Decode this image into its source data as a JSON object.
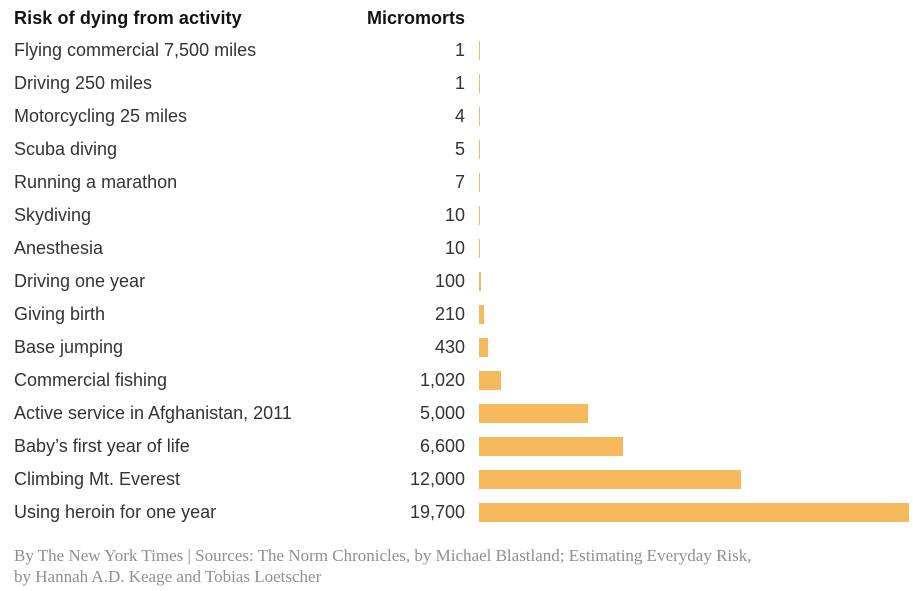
{
  "header": {
    "title": "Risk of dying from activity",
    "value_column": "Micromorts"
  },
  "rows": [
    {
      "label": "Flying commercial 7,500 miles",
      "value_label": "1",
      "value": 1
    },
    {
      "label": "Driving 250 miles",
      "value_label": "1",
      "value": 1
    },
    {
      "label": "Motorcycling 25 miles",
      "value_label": "4",
      "value": 4
    },
    {
      "label": "Scuba diving",
      "value_label": "5",
      "value": 5
    },
    {
      "label": "Running a marathon",
      "value_label": "7",
      "value": 7
    },
    {
      "label": "Skydiving",
      "value_label": "10",
      "value": 10
    },
    {
      "label": "Anesthesia",
      "value_label": "10",
      "value": 10
    },
    {
      "label": "Driving one year",
      "value_label": "100",
      "value": 100
    },
    {
      "label": "Giving birth",
      "value_label": "210",
      "value": 210
    },
    {
      "label": "Base jumping",
      "value_label": "430",
      "value": 430
    },
    {
      "label": "Commercial fishing",
      "value_label": "1,020",
      "value": 1020
    },
    {
      "label": "Active service in Afghanistan, 2011",
      "value_label": "5,000",
      "value": 5000
    },
    {
      "label": "Baby’s first year of life",
      "value_label": "6,600",
      "value": 6600
    },
    {
      "label": "Climbing Mt. Everest",
      "value_label": "12,000",
      "value": 12000
    },
    {
      "label": "Using heroin for one year",
      "value_label": "19,700",
      "value": 19700
    }
  ],
  "footer": {
    "line1": "By The New York Times | Sources: The Norm Chronicles, by Michael Blastland; Estimating Everyday Risk,",
    "line2": "by Hannah A.D. Keage and Tobias Loetscher"
  },
  "colors": {
    "bar": "#f6ba5c",
    "title": "#121212",
    "label": "#333333",
    "footer": "#8f8f8f"
  },
  "chart_data": {
    "type": "bar",
    "orientation": "horizontal",
    "title": "Risk of dying from activity",
    "value_label": "Micromorts",
    "categories": [
      "Flying commercial 7,500 miles",
      "Driving 250 miles",
      "Motorcycling 25 miles",
      "Scuba diving",
      "Running a marathon",
      "Skydiving",
      "Anesthesia",
      "Driving one year",
      "Giving birth",
      "Base jumping",
      "Commercial fishing",
      "Active service in Afghanistan, 2011",
      "Baby’s first year of life",
      "Climbing Mt. Everest",
      "Using heroin for one year"
    ],
    "values": [
      1,
      1,
      4,
      5,
      7,
      10,
      10,
      100,
      210,
      430,
      1020,
      5000,
      6600,
      12000,
      19700
    ],
    "xlim": [
      0,
      19700
    ],
    "grid": false,
    "legend": false,
    "bar_color": "#f6ba5c",
    "credit": "By The New York Times | Sources: The Norm Chronicles, by Michael Blastland; Estimating Everyday Risk, by Hannah A.D. Keage and Tobias Loetscher"
  }
}
